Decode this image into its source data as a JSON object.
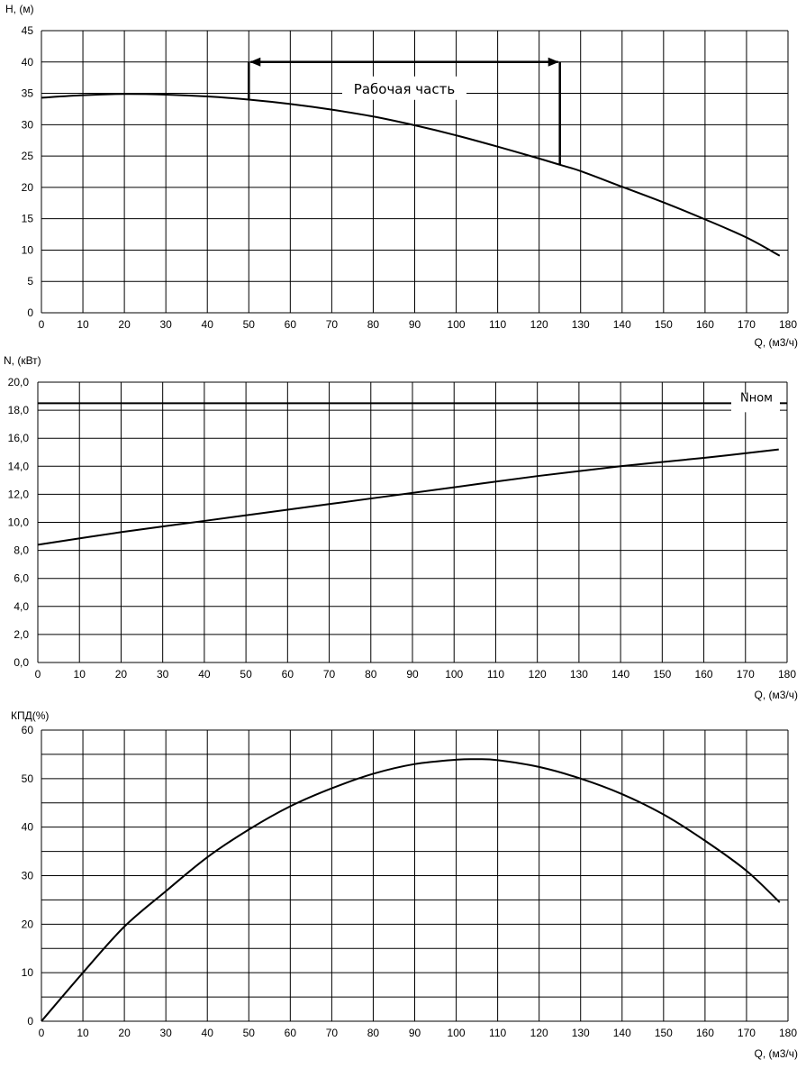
{
  "chart_data": [
    {
      "type": "line",
      "ylabel": "H, (м)",
      "xlabel": "Q, (м3/ч)",
      "xlim": [
        0,
        180
      ],
      "ylim": [
        0,
        45
      ],
      "x_ticks": [
        "0",
        "10",
        "20",
        "30",
        "40",
        "50",
        "60",
        "70",
        "80",
        "90",
        "100",
        "110",
        "120",
        "130",
        "140",
        "150",
        "160",
        "170",
        "180"
      ],
      "y_ticks": [
        "0",
        "5",
        "10",
        "15",
        "20",
        "25",
        "30",
        "35",
        "40",
        "45"
      ],
      "grid": true,
      "series": [
        {
          "x": [
            0,
            10,
            20,
            30,
            40,
            50,
            60,
            70,
            80,
            90,
            100,
            110,
            120,
            125,
            130,
            140,
            150,
            160,
            170,
            178
          ],
          "y": [
            34.3,
            34.7,
            34.9,
            34.8,
            34.5,
            34.0,
            33.3,
            32.4,
            31.3,
            29.9,
            28.3,
            26.5,
            24.6,
            23.6,
            22.6,
            20.1,
            17.6,
            14.9,
            12.0,
            9.1
          ],
          "color": "#000000"
        }
      ],
      "annotations": [
        {
          "text": "Рабочая часть",
          "kind": "working-range",
          "x_range": [
            50,
            125
          ],
          "y_arrow": 40
        }
      ]
    },
    {
      "type": "line",
      "ylabel": "N, (кВт)",
      "xlabel": "Q, (м3/ч)",
      "xlim": [
        0,
        180
      ],
      "ylim": [
        0,
        20
      ],
      "x_ticks": [
        "0",
        "10",
        "20",
        "30",
        "40",
        "50",
        "60",
        "70",
        "80",
        "90",
        "100",
        "110",
        "120",
        "130",
        "140",
        "150",
        "160",
        "170",
        "180"
      ],
      "y_ticks": [
        "0,0",
        "2,0",
        "4,0",
        "6,0",
        "8,0",
        "10,0",
        "12,0",
        "14,0",
        "16,0",
        "18,0",
        "20,0"
      ],
      "grid": true,
      "series": [
        {
          "x": [
            0,
            20,
            40,
            60,
            80,
            100,
            120,
            140,
            160,
            178
          ],
          "y": [
            8.4,
            9.3,
            10.1,
            10.9,
            11.7,
            12.5,
            13.3,
            14.0,
            14.6,
            15.2
          ],
          "color": "#000000"
        }
      ],
      "reference_line": {
        "text": "Nном",
        "y": 18.5
      }
    },
    {
      "type": "line",
      "ylabel": "КПД(%)",
      "xlabel": "Q, (м3/ч)",
      "xlim": [
        0,
        180
      ],
      "ylim": [
        0,
        60
      ],
      "x_ticks": [
        "0",
        "10",
        "20",
        "30",
        "40",
        "50",
        "60",
        "70",
        "80",
        "90",
        "100",
        "110",
        "120",
        "130",
        "140",
        "150",
        "160",
        "170",
        "180"
      ],
      "y_ticks": [
        "0",
        "10",
        "20",
        "30",
        "40",
        "50",
        "60"
      ],
      "grid": true,
      "series": [
        {
          "x": [
            0,
            10,
            20,
            30,
            40,
            50,
            60,
            70,
            80,
            90,
            100,
            105,
            110,
            120,
            130,
            140,
            150,
            160,
            170,
            178
          ],
          "y": [
            0,
            10.0,
            19.5,
            26.8,
            33.8,
            39.5,
            44.3,
            48.0,
            51.0,
            53.0,
            53.9,
            54.0,
            53.8,
            52.4,
            50.0,
            46.8,
            42.6,
            37.2,
            31.0,
            24.5
          ],
          "color": "#000000"
        }
      ]
    }
  ]
}
